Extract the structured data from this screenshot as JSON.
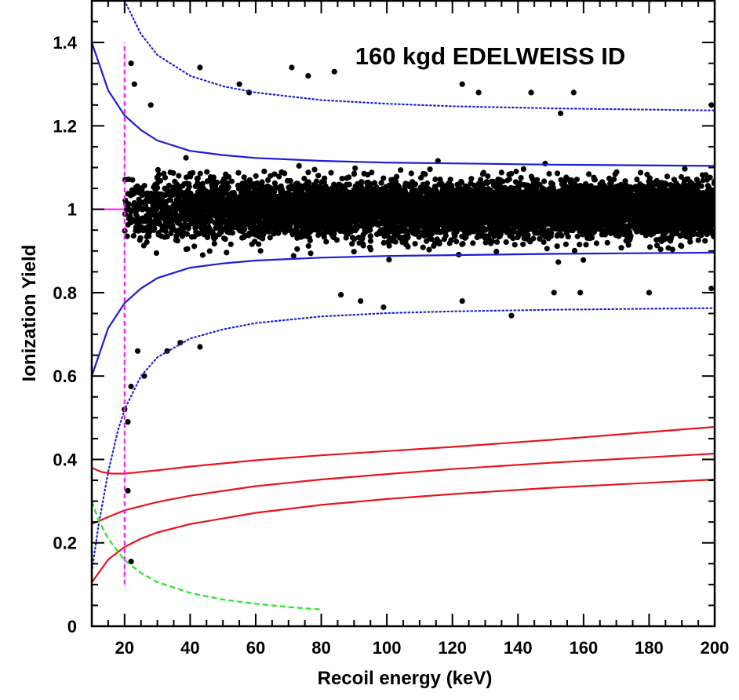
{
  "chart_data": {
    "type": "scatter",
    "title": "160 kgd EDELWEISS ID",
    "xlabel": "Recoil energy (keV)",
    "ylabel": "Ionization Yield",
    "xlim": [
      10,
      200
    ],
    "ylim": [
      0,
      1.5
    ],
    "x_ticks": [
      "20",
      "40",
      "60",
      "80",
      "100",
      "120",
      "140",
      "160",
      "180",
      "200"
    ],
    "y_ticks": [
      "0",
      "0.2",
      "0.4",
      "0.6",
      "0.8",
      "1",
      "1.2",
      "1.4"
    ],
    "grid": false,
    "colors": {
      "points": "#000000",
      "gamma_band": "#1c1cd4",
      "nuclear_recoil_band": "#e8141c",
      "threshold": "#ff1aff",
      "heat_threshold": "#22e622"
    },
    "series": [
      {
        "style": "blue-solid",
        "role": "gamma band upper",
        "x": [
          10,
          15,
          20,
          25,
          30,
          40,
          50,
          60,
          80,
          100,
          120,
          150,
          200
        ],
        "y": [
          1.4,
          1.285,
          1.225,
          1.19,
          1.165,
          1.14,
          1.13,
          1.123,
          1.116,
          1.112,
          1.11,
          1.107,
          1.104
        ]
      },
      {
        "style": "blue-solid",
        "role": "gamma band lower",
        "x": [
          10,
          15,
          20,
          25,
          30,
          40,
          50,
          60,
          80,
          100,
          120,
          150,
          200
        ],
        "y": [
          0.6,
          0.715,
          0.775,
          0.81,
          0.835,
          0.86,
          0.87,
          0.877,
          0.884,
          0.888,
          0.89,
          0.893,
          0.896
        ]
      },
      {
        "style": "blue-dotted",
        "role": "gamma band 3-sigma upper",
        "x": [
          20,
          25,
          30,
          40,
          50,
          60,
          80,
          100,
          120,
          150,
          200
        ],
        "y": [
          1.5,
          1.42,
          1.37,
          1.32,
          1.295,
          1.28,
          1.262,
          1.253,
          1.247,
          1.242,
          1.237
        ]
      },
      {
        "style": "blue-dotted",
        "role": "gamma band 3-sigma lower",
        "x": [
          10,
          12,
          15,
          18,
          20,
          25,
          30,
          40,
          50,
          60,
          80,
          100,
          120,
          150,
          200
        ],
        "y": [
          0.13,
          0.24,
          0.37,
          0.47,
          0.52,
          0.6,
          0.645,
          0.69,
          0.712,
          0.727,
          0.743,
          0.751,
          0.755,
          0.759,
          0.763
        ]
      },
      {
        "style": "red-solid",
        "role": "nuclear recoil band upper",
        "x": [
          10,
          13,
          16,
          20,
          30,
          40,
          60,
          80,
          100,
          120,
          150,
          200
        ],
        "y": [
          0.38,
          0.37,
          0.366,
          0.366,
          0.374,
          0.383,
          0.398,
          0.41,
          0.42,
          0.43,
          0.447,
          0.478
        ]
      },
      {
        "style": "red-solid",
        "role": "nuclear recoil band center",
        "x": [
          10,
          15,
          20,
          30,
          40,
          60,
          80,
          100,
          120,
          150,
          200
        ],
        "y": [
          0.245,
          0.262,
          0.278,
          0.298,
          0.313,
          0.336,
          0.352,
          0.365,
          0.377,
          0.392,
          0.414
        ]
      },
      {
        "style": "red-solid",
        "role": "nuclear recoil band lower",
        "x": [
          10,
          15,
          20,
          25,
          30,
          40,
          60,
          80,
          100,
          120,
          150,
          200
        ],
        "y": [
          0.105,
          0.16,
          0.19,
          0.21,
          0.225,
          0.245,
          0.272,
          0.291,
          0.305,
          0.317,
          0.332,
          0.352
        ]
      },
      {
        "style": "green-dashed",
        "role": "heat threshold",
        "x": [
          10,
          12,
          15,
          20,
          25,
          30,
          40,
          50,
          60,
          70,
          80
        ],
        "y": [
          0.3,
          0.255,
          0.21,
          0.158,
          0.128,
          0.106,
          0.08,
          0.064,
          0.054,
          0.046,
          0.04
        ]
      },
      {
        "style": "magenta-dashed",
        "role": "recoil energy threshold",
        "vertical": true,
        "x": [
          20,
          20
        ],
        "y": [
          0.1,
          1.4
        ]
      },
      {
        "style": "magenta-solid",
        "role": "yield 1 reference",
        "x": [
          10,
          20
        ],
        "y": [
          1.0,
          1.0
        ]
      }
    ],
    "points": {
      "description": "about 8000 events clustered at ionization yield ~1 for recoil energies 20-200 keV",
      "n_points": 8000,
      "x_min": 20,
      "x_max": 200,
      "y_center": 1.0,
      "outliers": [
        {
          "x": 22,
          "y": 1.35
        },
        {
          "x": 23,
          "y": 1.3
        },
        {
          "x": 28,
          "y": 1.25
        },
        {
          "x": 43,
          "y": 1.34
        },
        {
          "x": 55,
          "y": 1.3
        },
        {
          "x": 58,
          "y": 1.28
        },
        {
          "x": 71,
          "y": 1.34
        },
        {
          "x": 76,
          "y": 1.32
        },
        {
          "x": 84,
          "y": 1.33
        },
        {
          "x": 123,
          "y": 1.3
        },
        {
          "x": 128,
          "y": 1.28
        },
        {
          "x": 144,
          "y": 1.28
        },
        {
          "x": 157,
          "y": 1.28
        },
        {
          "x": 153,
          "y": 1.23
        },
        {
          "x": 199,
          "y": 1.25
        },
        {
          "x": 20,
          "y": 0.52
        },
        {
          "x": 21,
          "y": 0.49
        },
        {
          "x": 22,
          "y": 0.575
        },
        {
          "x": 21,
          "y": 0.325
        },
        {
          "x": 22,
          "y": 0.155
        },
        {
          "x": 33,
          "y": 0.66
        },
        {
          "x": 37,
          "y": 0.68
        },
        {
          "x": 43,
          "y": 0.67
        },
        {
          "x": 26,
          "y": 0.6
        },
        {
          "x": 24,
          "y": 0.66
        },
        {
          "x": 99,
          "y": 0.765
        },
        {
          "x": 92,
          "y": 0.78
        },
        {
          "x": 86,
          "y": 0.795
        },
        {
          "x": 123,
          "y": 0.78
        },
        {
          "x": 138,
          "y": 0.745
        },
        {
          "x": 151,
          "y": 0.8
        },
        {
          "x": 159,
          "y": 0.8
        },
        {
          "x": 180,
          "y": 0.8
        },
        {
          "x": 199,
          "y": 0.81
        }
      ]
    }
  }
}
